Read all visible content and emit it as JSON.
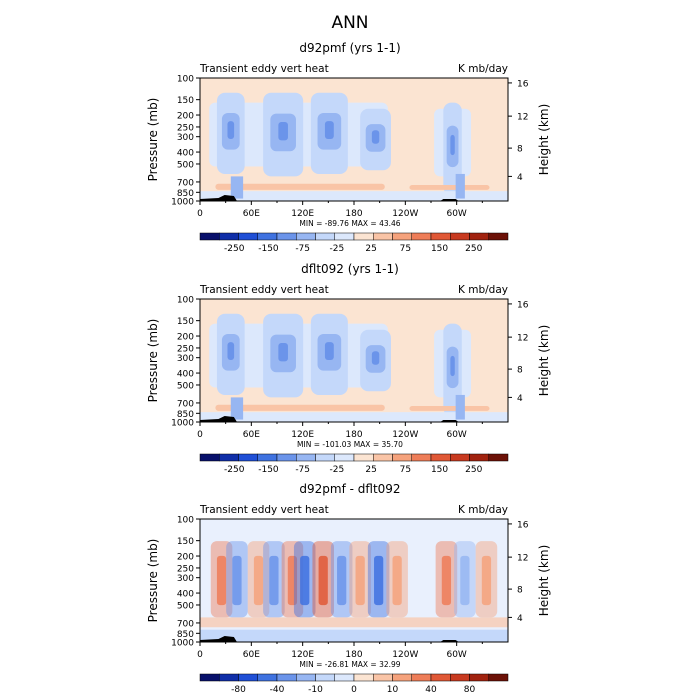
{
  "figure_title": "ANN",
  "colors": {
    "blues": [
      "#08106b",
      "#0f2ea8",
      "#1f4fd6",
      "#3f72e0",
      "#6b94ea",
      "#97b6f2",
      "#c4d8fa",
      "#dce8fc"
    ],
    "reds": [
      "#fbe4d2",
      "#f9c4a6",
      "#f5a27c",
      "#ee7d58",
      "#e05836",
      "#c83a20",
      "#a1220f",
      "#6c1107"
    ],
    "topography": "#000000"
  },
  "chart_data": [
    {
      "type": "heatmap",
      "title": "d92pmf (yrs 1-1)",
      "left_label": "Transient eddy vert heat",
      "right_label": "K mb/day",
      "xlabel": "",
      "ylabel": "Pressure (mb)",
      "ylabel_right": "Height (km)",
      "x_ticks": [
        "0",
        "60E",
        "120E",
        "180",
        "120W",
        "60W"
      ],
      "y_ticks": [
        "100",
        "150",
        "200",
        "250",
        "300",
        "400",
        "500",
        "700",
        "850",
        "1000"
      ],
      "y_ticks_right": [
        "16",
        "12",
        "8",
        "4"
      ],
      "stats": "MIN = -89.76   MAX =  43.46",
      "colorbar_labels": [
        "-250",
        "-150",
        "-75",
        "-25",
        "25",
        "75",
        "150",
        "250"
      ],
      "background_level": 0
    },
    {
      "type": "heatmap",
      "title": "dflt092 (yrs 1-1)",
      "left_label": "Transient eddy vert heat",
      "right_label": "K mb/day",
      "xlabel": "",
      "ylabel": "Pressure (mb)",
      "ylabel_right": "Height (km)",
      "x_ticks": [
        "0",
        "60E",
        "120E",
        "180",
        "120W",
        "60W"
      ],
      "y_ticks": [
        "100",
        "150",
        "200",
        "250",
        "300",
        "400",
        "500",
        "700",
        "850",
        "1000"
      ],
      "y_ticks_right": [
        "16",
        "12",
        "8",
        "4"
      ],
      "stats": "MIN = -101.03   MAX =  35.70",
      "colorbar_labels": [
        "-250",
        "-150",
        "-75",
        "-25",
        "25",
        "75",
        "150",
        "250"
      ],
      "background_level": 0
    },
    {
      "type": "heatmap",
      "title": "d92pmf - dflt092",
      "left_label": "Transient eddy vert heat",
      "right_label": "K mb/day",
      "xlabel": "",
      "ylabel": "Pressure (mb)",
      "ylabel_right": "Height (km)",
      "x_ticks": [
        "0",
        "60E",
        "120E",
        "180",
        "120W",
        "60W"
      ],
      "y_ticks": [
        "100",
        "150",
        "200",
        "250",
        "300",
        "400",
        "500",
        "700",
        "850",
        "1000"
      ],
      "y_ticks_right": [
        "16",
        "12",
        "8",
        "4"
      ],
      "stats": "MIN = -26.81   MAX =  32.99",
      "colorbar_labels": [
        "-80",
        "-40",
        "-10",
        "0",
        "10",
        "40",
        "80"
      ],
      "background_level": 0
    }
  ]
}
